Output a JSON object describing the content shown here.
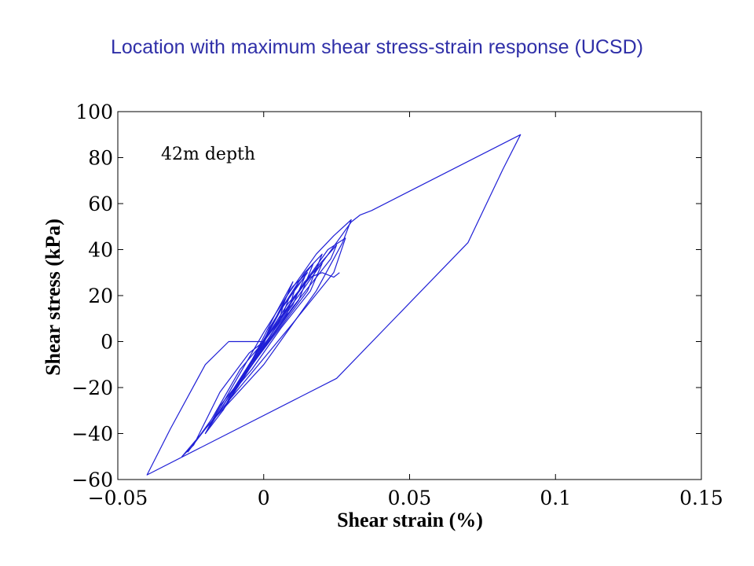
{
  "slide": {
    "title": "Location with maximum shear stress-strain response (UCSD)"
  },
  "chart_data": {
    "type": "line",
    "xlabel": "Shear strain (%)",
    "ylabel": "Shear stress (kPa)",
    "xlim": [
      -0.05,
      0.15
    ],
    "ylim": [
      -60,
      100
    ],
    "xticks": [
      -0.05,
      0,
      0.05,
      0.1,
      0.15
    ],
    "xtick_labels": [
      "−0.05",
      "0",
      "0.05",
      "0.1",
      "0.15"
    ],
    "yticks": [
      -60,
      -40,
      -20,
      0,
      20,
      40,
      60,
      80,
      100
    ],
    "ytick_labels": [
      "−60",
      "−40",
      "−20",
      "0",
      "20",
      "40",
      "60",
      "80",
      "100"
    ],
    "annotation": "42m depth",
    "grid": false,
    "line_color": "#1f1fd6",
    "series": [
      {
        "x": [
          0.0,
          0.012,
          0.03,
          0.033,
          0.037,
          0.088,
          0.082,
          0.07,
          0.025,
          -0.04,
          -0.032,
          -0.02,
          -0.012,
          0.0
        ],
        "y": [
          0,
          20,
          52,
          55,
          57,
          90,
          75,
          43,
          -16,
          -58,
          -38,
          -10,
          0,
          0
        ]
      },
      {
        "x": [
          0.0,
          0.008,
          0.018,
          0.024,
          0.03,
          0.027,
          0.018,
          0.0,
          -0.018,
          -0.028,
          -0.024,
          -0.015,
          -0.005,
          0.0
        ],
        "y": [
          0,
          20,
          38,
          46,
          53,
          43,
          22,
          -10,
          -35,
          -50,
          -45,
          -22,
          -5,
          0
        ]
      },
      {
        "x": [
          0.0,
          0.012,
          0.022,
          0.028,
          0.024,
          0.01,
          -0.005,
          -0.02,
          -0.026,
          -0.018,
          -0.008,
          0.0
        ],
        "y": [
          0,
          22,
          40,
          45,
          30,
          8,
          -15,
          -38,
          -48,
          -34,
          -12,
          0
        ]
      },
      {
        "x": [
          0.0,
          0.01,
          0.018,
          0.025,
          0.023,
          0.01,
          -0.005,
          -0.015,
          -0.02,
          -0.015,
          -0.005,
          0.0
        ],
        "y": [
          0,
          18,
          32,
          42,
          36,
          15,
          -12,
          -28,
          -40,
          -30,
          -10,
          0
        ]
      },
      {
        "x": [
          0.0,
          0.006,
          0.014,
          0.02,
          0.015,
          0.005,
          -0.004,
          -0.012,
          -0.016,
          -0.01,
          -0.003,
          0.0
        ],
        "y": [
          0,
          14,
          30,
          38,
          22,
          5,
          -10,
          -24,
          -32,
          -20,
          -6,
          0
        ]
      },
      {
        "x": [
          0.0,
          0.005,
          0.012,
          0.017,
          0.012,
          0.004,
          -0.004,
          -0.01,
          -0.014,
          -0.008,
          -0.002,
          0.0
        ],
        "y": [
          0,
          12,
          26,
          34,
          18,
          4,
          -9,
          -20,
          -28,
          -16,
          -5,
          0
        ]
      },
      {
        "x": [
          0.0,
          0.004,
          0.01,
          0.014,
          0.01,
          0.003,
          -0.003,
          -0.008,
          -0.011,
          -0.006,
          -0.001,
          0.0
        ],
        "y": [
          0,
          10,
          22,
          28,
          16,
          4,
          -8,
          -18,
          -24,
          -13,
          -3,
          0
        ]
      },
      {
        "x": [
          0.0,
          0.003,
          0.008,
          0.011,
          0.008,
          0.003,
          -0.002,
          -0.006,
          -0.009,
          -0.005,
          -0.001,
          0.0
        ],
        "y": [
          0,
          8,
          18,
          24,
          12,
          3,
          -6,
          -14,
          -20,
          -10,
          -2,
          0
        ]
      },
      {
        "x": [
          0.0,
          0.002,
          0.006,
          0.009,
          0.006,
          0.002,
          -0.002,
          -0.005,
          -0.007,
          -0.004,
          -0.001,
          0.0
        ],
        "y": [
          0,
          6,
          14,
          20,
          10,
          2,
          -5,
          -11,
          -16,
          -8,
          -2,
          0
        ]
      },
      {
        "x": [
          0.0,
          0.002,
          0.005,
          0.007,
          0.005,
          0.001,
          -0.001,
          -0.004,
          -0.006,
          -0.003,
          0.0
        ],
        "y": [
          0,
          6,
          12,
          17,
          8,
          2,
          -4,
          -9,
          -13,
          -6,
          0
        ]
      },
      {
        "x": [
          -0.012,
          -0.004,
          0.004,
          0.01,
          0.006,
          -0.002,
          -0.01,
          -0.014,
          -0.012
        ],
        "y": [
          -26,
          -8,
          12,
          26,
          14,
          -4,
          -20,
          -30,
          -26
        ]
      },
      {
        "x": [
          -0.02,
          -0.01,
          0.0,
          0.01,
          0.015,
          0.006,
          -0.004,
          -0.014,
          -0.02
        ],
        "y": [
          -40,
          -18,
          4,
          24,
          30,
          14,
          -8,
          -30,
          -40
        ]
      },
      {
        "x": [
          -0.008,
          0.004,
          0.014,
          0.02,
          0.016,
          0.006,
          -0.004,
          -0.012,
          -0.008
        ],
        "y": [
          -18,
          6,
          26,
          34,
          22,
          6,
          -12,
          -24,
          -18
        ]
      },
      {
        "x": [
          -0.003,
          0.008,
          0.016,
          0.02,
          0.024,
          0.026
        ],
        "y": [
          -6,
          16,
          28,
          30,
          28,
          30
        ]
      }
    ]
  }
}
